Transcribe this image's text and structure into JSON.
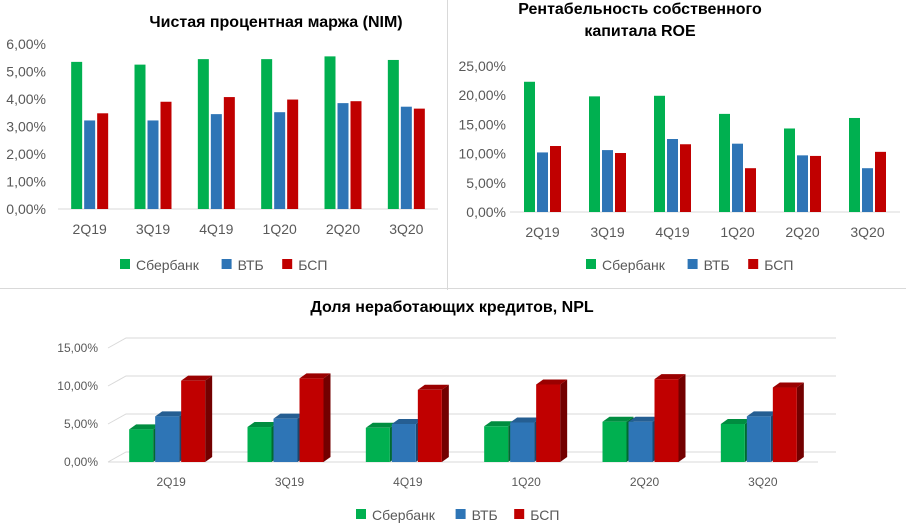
{
  "colors": {
    "sber": "#00b050",
    "vtb": "#2e75b6",
    "bsp": "#c00000"
  },
  "chart_data": [
    {
      "id": "nim",
      "type": "bar",
      "title": "Чистая процентная маржа (NIM)",
      "categories": [
        "2Q19",
        "3Q19",
        "4Q19",
        "1Q20",
        "2Q20",
        "3Q20"
      ],
      "ylim": [
        0,
        6
      ],
      "yticks": [
        "0,00%",
        "1,00%",
        "2,00%",
        "3,00%",
        "4,00%",
        "5,00%",
        "6,00%"
      ],
      "grid": false,
      "legend": "bottom",
      "series": [
        {
          "name": "Сбербанк",
          "values": [
            5.35,
            5.25,
            5.45,
            5.45,
            5.55,
            5.42
          ]
        },
        {
          "name": "ВТБ",
          "values": [
            3.22,
            3.22,
            3.45,
            3.52,
            3.85,
            3.72
          ]
        },
        {
          "name": "БСП",
          "values": [
            3.48,
            3.9,
            4.07,
            3.98,
            3.92,
            3.65
          ]
        }
      ]
    },
    {
      "id": "roe",
      "type": "bar",
      "title": "Рентабельность собственного капитала ROE",
      "title_lines": [
        "Рентабельность собственного",
        "капитала ROE"
      ],
      "categories": [
        "2Q19",
        "3Q19",
        "4Q19",
        "1Q20",
        "2Q20",
        "3Q20"
      ],
      "ylim": [
        0,
        25
      ],
      "yticks": [
        "0,00%",
        "5,00%",
        "10,00%",
        "15,00%",
        "20,00%",
        "25,00%"
      ],
      "grid": false,
      "legend": "bottom",
      "series": [
        {
          "name": "Сбербанк",
          "values": [
            22.3,
            19.8,
            19.9,
            16.8,
            14.3,
            16.1
          ]
        },
        {
          "name": "ВТБ",
          "values": [
            10.2,
            10.6,
            12.5,
            11.7,
            9.7,
            7.5
          ]
        },
        {
          "name": "БСП",
          "values": [
            11.3,
            10.1,
            11.6,
            7.5,
            9.6,
            10.3
          ]
        }
      ]
    },
    {
      "id": "npl",
      "type": "bar",
      "style": "3d",
      "title": "Доля неработающих кредитов, NPL",
      "categories": [
        "2Q19",
        "3Q19",
        "4Q19",
        "1Q20",
        "2Q20",
        "3Q20"
      ],
      "ylim": [
        0,
        15
      ],
      "yticks": [
        "0,00%",
        "5,00%",
        "10,00%",
        "15,00%"
      ],
      "grid": true,
      "legend": "bottom",
      "series": [
        {
          "name": "Сбербанк",
          "values": [
            4.3,
            4.6,
            4.5,
            4.7,
            5.3,
            5.0
          ]
        },
        {
          "name": "ВТБ",
          "values": [
            6.0,
            5.7,
            5.0,
            5.2,
            5.3,
            6.0
          ]
        },
        {
          "name": "БСП",
          "values": [
            10.7,
            11.0,
            9.5,
            10.2,
            10.9,
            9.8
          ]
        }
      ]
    }
  ]
}
